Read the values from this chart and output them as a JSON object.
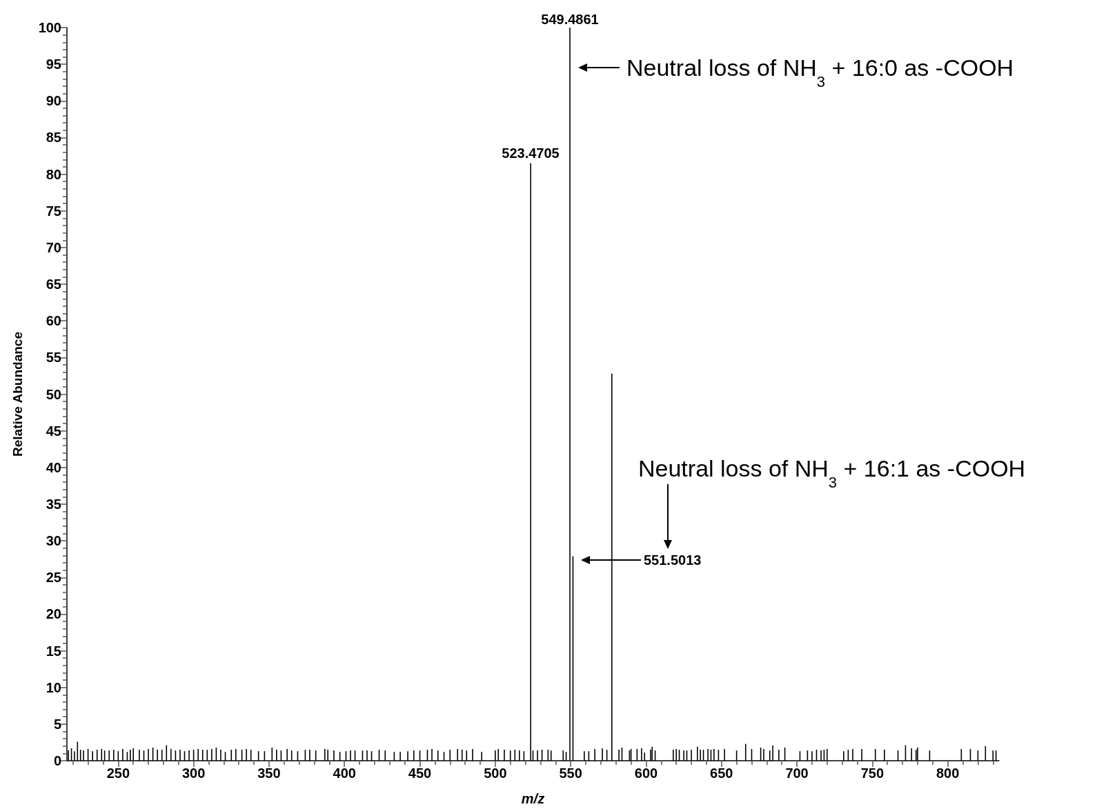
{
  "chart_data": {
    "type": "bar",
    "xlabel": "m/z",
    "ylabel": "Relative Abundance",
    "x": [
      217,
      219,
      221,
      223,
      225,
      227,
      230,
      233,
      236,
      239,
      241,
      244,
      247,
      250,
      253,
      256,
      258,
      260,
      264,
      267,
      270,
      273,
      276,
      279,
      282,
      285,
      288,
      291,
      294,
      297,
      300,
      303,
      306,
      309,
      312,
      315,
      318,
      321,
      325,
      328,
      332,
      335,
      338,
      343,
      347,
      352,
      355,
      358,
      362,
      365,
      369,
      374,
      377,
      381,
      387,
      389,
      393,
      397,
      401,
      404,
      407,
      412,
      415,
      418,
      423,
      427,
      433,
      437,
      442,
      446,
      450,
      455,
      458,
      462,
      466,
      470,
      475,
      478,
      481,
      485,
      491,
      500,
      502,
      506,
      510,
      513,
      516,
      519,
      523.4705,
      525,
      528,
      531,
      535,
      537,
      545,
      547,
      549.4861,
      551.5013,
      559,
      562,
      566,
      571,
      574,
      577.3,
      582,
      584,
      589,
      590,
      594,
      597,
      599,
      603,
      604,
      606,
      618,
      620,
      622,
      625,
      627,
      630,
      634,
      636,
      638,
      641,
      643,
      645,
      648,
      652,
      660,
      666,
      670,
      676,
      678,
      682,
      684,
      688,
      692,
      702,
      707,
      710,
      713,
      716,
      718,
      720,
      731,
      734,
      737,
      743,
      752,
      758,
      767,
      772,
      776,
      779,
      780,
      788,
      809,
      815,
      820,
      825,
      830,
      832
    ],
    "series": [
      {
        "color": "#000000",
        "values": [
          1.4,
          1.7,
          1.3,
          2.6,
          1.5,
          1.4,
          1.6,
          1.3,
          1.5,
          1.6,
          1.4,
          1.4,
          1.5,
          1.3,
          1.6,
          1.2,
          1.5,
          1.7,
          1.5,
          1.4,
          1.6,
          1.8,
          1.5,
          1.5,
          2.1,
          1.6,
          1.4,
          1.5,
          1.3,
          1.4,
          1.5,
          1.6,
          1.5,
          1.5,
          1.6,
          1.8,
          1.5,
          1.2,
          1.5,
          1.6,
          1.5,
          1.6,
          1.5,
          1.3,
          1.3,
          1.8,
          1.5,
          1.4,
          1.6,
          1.4,
          1.3,
          1.5,
          1.5,
          1.4,
          1.6,
          1.5,
          1.4,
          1.2,
          1.3,
          1.4,
          1.4,
          1.4,
          1.4,
          1.3,
          1.5,
          1.4,
          1.2,
          1.2,
          1.3,
          1.4,
          1.4,
          1.5,
          1.6,
          1.4,
          1.2,
          1.5,
          1.6,
          1.5,
          1.4,
          1.6,
          1.2,
          1.4,
          1.6,
          1.5,
          1.4,
          1.5,
          1.4,
          1.3,
          81.5,
          1.4,
          1.4,
          1.5,
          1.5,
          1.4,
          1.4,
          1.2,
          100,
          27.9,
          1.3,
          1.3,
          1.6,
          1.7,
          1.5,
          52.8,
          1.5,
          1.8,
          1.4,
          1.6,
          1.6,
          1.7,
          1.1,
          1.5,
          1.9,
          1.4,
          1.5,
          1.6,
          1.5,
          1.4,
          1.4,
          1.5,
          1.9,
          1.5,
          1.5,
          1.6,
          1.5,
          1.6,
          1.5,
          1.6,
          1.4,
          2.3,
          1.6,
          1.8,
          1.6,
          1.4,
          2.1,
          1.5,
          1.8,
          1.3,
          1.4,
          1.3,
          1.5,
          1.4,
          1.5,
          1.6,
          1.3,
          1.5,
          1.6,
          1.6,
          1.6,
          1.5,
          1.4,
          2.1,
          1.7,
          1.5,
          1.8,
          1.4,
          1.6,
          1.6,
          1.4,
          2.0,
          1.4,
          1.4
        ]
      }
    ],
    "xlim": [
      216,
      834
    ],
    "xticks": [
      {
        "value": 220,
        "label": null
      },
      {
        "value": 230,
        "label": null
      },
      {
        "value": 240,
        "label": null
      },
      250,
      {
        "value": 260,
        "label": null
      },
      {
        "value": 270,
        "label": null
      },
      {
        "value": 280,
        "label": null
      },
      {
        "value": 290,
        "label": null
      },
      300,
      {
        "value": 310,
        "label": null
      },
      {
        "value": 320,
        "label": null
      },
      {
        "value": 330,
        "label": null
      },
      {
        "value": 340,
        "label": null
      },
      350,
      {
        "value": 360,
        "label": null
      },
      {
        "value": 370,
        "label": null
      },
      {
        "value": 380,
        "label": null
      },
      {
        "value": 390,
        "label": null
      },
      400,
      {
        "value": 410,
        "label": null
      },
      {
        "value": 420,
        "label": null
      },
      {
        "value": 430,
        "label": null
      },
      {
        "value": 440,
        "label": null
      },
      450,
      {
        "value": 460,
        "label": null
      },
      {
        "value": 470,
        "label": null
      },
      {
        "value": 480,
        "label": null
      },
      {
        "value": 490,
        "label": null
      },
      500,
      {
        "value": 510,
        "label": null
      },
      {
        "value": 520,
        "label": null
      },
      {
        "value": 530,
        "label": null
      },
      {
        "value": 540,
        "label": null
      },
      550,
      {
        "value": 560,
        "label": null
      },
      {
        "value": 570,
        "label": null
      },
      {
        "value": 580,
        "label": null
      },
      {
        "value": 590,
        "label": null
      },
      600,
      {
        "value": 610,
        "label": null
      },
      {
        "value": 620,
        "label": null
      },
      {
        "value": 630,
        "label": null
      },
      {
        "value": 640,
        "label": null
      },
      650,
      {
        "value": 660,
        "label": null
      },
      {
        "value": 670,
        "label": null
      },
      {
        "value": 680,
        "label": null
      },
      {
        "value": 690,
        "label": null
      },
      700,
      {
        "value": 710,
        "label": null
      },
      {
        "value": 720,
        "label": null
      },
      {
        "value": 730,
        "label": null
      },
      {
        "value": 740,
        "label": null
      },
      750,
      {
        "value": 760,
        "label": null
      },
      {
        "value": 770,
        "label": null
      },
      {
        "value": 780,
        "label": null
      },
      {
        "value": 790,
        "label": null
      },
      800,
      {
        "value": 810,
        "label": null
      },
      {
        "value": 820,
        "label": null
      },
      {
        "value": 830,
        "label": null
      }
    ],
    "ylim": [
      0,
      100
    ],
    "yticks": [
      0,
      {
        "value": 1,
        "label": null
      },
      {
        "value": 2,
        "label": null
      },
      {
        "value": 3,
        "label": null
      },
      {
        "value": 4,
        "label": null
      },
      5,
      {
        "value": 6,
        "label": null
      },
      {
        "value": 7,
        "label": null
      },
      {
        "value": 8,
        "label": null
      },
      {
        "value": 9,
        "label": null
      },
      10,
      {
        "value": 11,
        "label": null
      },
      {
        "value": 12,
        "label": null
      },
      {
        "value": 13,
        "label": null
      },
      {
        "value": 14,
        "label": null
      },
      15,
      {
        "value": 16,
        "label": null
      },
      {
        "value": 17,
        "label": null
      },
      {
        "value": 18,
        "label": null
      },
      {
        "value": 19,
        "label": null
      },
      20,
      {
        "value": 21,
        "label": null
      },
      {
        "value": 22,
        "label": null
      },
      {
        "value": 23,
        "label": null
      },
      {
        "value": 24,
        "label": null
      },
      25,
      {
        "value": 26,
        "label": null
      },
      {
        "value": 27,
        "label": null
      },
      {
        "value": 28,
        "label": null
      },
      {
        "value": 29,
        "label": null
      },
      30,
      {
        "value": 31,
        "label": null
      },
      {
        "value": 32,
        "label": null
      },
      {
        "value": 33,
        "label": null
      },
      {
        "value": 34,
        "label": null
      },
      35,
      {
        "value": 36,
        "label": null
      },
      {
        "value": 37,
        "label": null
      },
      {
        "value": 38,
        "label": null
      },
      {
        "value": 39,
        "label": null
      },
      40,
      {
        "value": 41,
        "label": null
      },
      {
        "value": 42,
        "label": null
      },
      {
        "value": 43,
        "label": null
      },
      {
        "value": 44,
        "label": null
      },
      45,
      {
        "value": 46,
        "label": null
      },
      {
        "value": 47,
        "label": null
      },
      {
        "value": 48,
        "label": null
      },
      {
        "value": 49,
        "label": null
      },
      50,
      {
        "value": 51,
        "label": null
      },
      {
        "value": 52,
        "label": null
      },
      {
        "value": 53,
        "label": null
      },
      {
        "value": 54,
        "label": null
      },
      55,
      {
        "value": 56,
        "label": null
      },
      {
        "value": 57,
        "label": null
      },
      {
        "value": 58,
        "label": null
      },
      {
        "value": 59,
        "label": null
      },
      60,
      {
        "value": 61,
        "label": null
      },
      {
        "value": 62,
        "label": null
      },
      {
        "value": 63,
        "label": null
      },
      {
        "value": 64,
        "label": null
      },
      65,
      {
        "value": 66,
        "label": null
      },
      {
        "value": 67,
        "label": null
      },
      {
        "value": 68,
        "label": null
      },
      {
        "value": 69,
        "label": null
      },
      70,
      {
        "value": 71,
        "label": null
      },
      {
        "value": 72,
        "label": null
      },
      {
        "value": 73,
        "label": null
      },
      {
        "value": 74,
        "label": null
      },
      75,
      {
        "value": 76,
        "label": null
      },
      {
        "value": 77,
        "label": null
      },
      {
        "value": 78,
        "label": null
      },
      {
        "value": 79,
        "label": null
      },
      80,
      {
        "value": 81,
        "label": null
      },
      {
        "value": 82,
        "label": null
      },
      {
        "value": 83,
        "label": null
      },
      {
        "value": 84,
        "label": null
      },
      85,
      {
        "value": 86,
        "label": null
      },
      {
        "value": 87,
        "label": null
      },
      {
        "value": 88,
        "label": null
      },
      {
        "value": 89,
        "label": null
      },
      90,
      {
        "value": 91,
        "label": null
      },
      {
        "value": 92,
        "label": null
      },
      {
        "value": 93,
        "label": null
      },
      {
        "value": 94,
        "label": null
      },
      95,
      {
        "value": 96,
        "label": null
      },
      {
        "value": 97,
        "label": null
      },
      {
        "value": 98,
        "label": null
      },
      {
        "value": 99,
        "label": null
      },
      100
    ],
    "annotations": [
      "549.4861",
      "523.4705",
      "551.5013",
      "Neutral loss of NH$_{3}$ + 16:0 as -COOH",
      "Neutral loss of NH$_{3}$ + 16:1 as -COOH"
    ],
    "grid": false
  }
}
